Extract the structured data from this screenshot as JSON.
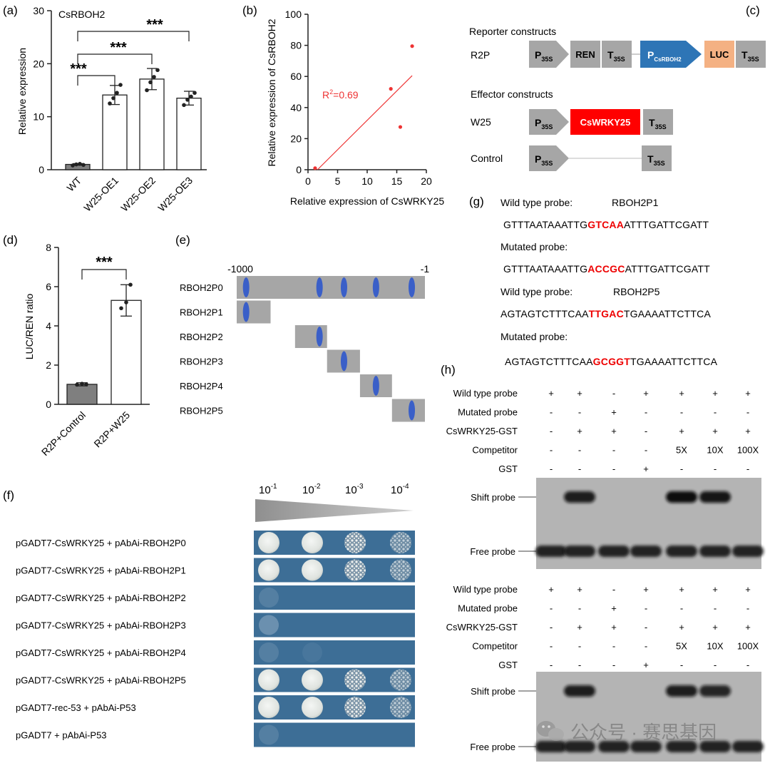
{
  "watermark": "公众号 · 赛思基因",
  "colors": {
    "bar_dark": "#7f7f7f",
    "red": "#ee2222",
    "blue_ellipse": "#3a5fc8",
    "promoter_blue": "#2e75b6",
    "luc_orange": "#f4b183",
    "wrky_red": "#ff0000",
    "gray_box": "#a6a6a6",
    "spot_bg": "#3d6e96"
  },
  "panels": {
    "a": {
      "label": "(a)",
      "chart_data": {
        "type": "bar",
        "title": "CsRBOH2",
        "ylabel": "Relative expression",
        "ylim": [
          0,
          30
        ],
        "yticks": [
          "0",
          "10",
          "20",
          "30"
        ],
        "categories": [
          "WT",
          "W25-OE1",
          "W25-OE2",
          "W25-OE3"
        ],
        "values": [
          1.0,
          14.1,
          17.1,
          13.5
        ],
        "errors": [
          0.15,
          1.8,
          2.0,
          1.3
        ],
        "points": [
          [
            0.8,
            1.0,
            1.1,
            0.9
          ],
          [
            12.5,
            13.5,
            14.5,
            16.0
          ],
          [
            15.0,
            16.5,
            17.5,
            18.8
          ],
          [
            12.2,
            13.2,
            13.8,
            14.5
          ]
        ],
        "significance": [
          "***",
          "***",
          "***"
        ]
      }
    },
    "b": {
      "label": "(b)",
      "chart_data": {
        "type": "scatter",
        "xlabel": "Relative expression of CsWRKY25",
        "ylabel": "Relative expression of CsRBOH2",
        "xlim": [
          0,
          20
        ],
        "ylim": [
          0,
          100
        ],
        "xticks": [
          "0",
          "5",
          "10",
          "15",
          "20"
        ],
        "yticks": [
          "0",
          "20",
          "40",
          "60",
          "80",
          "100"
        ],
        "points": [
          [
            1.2,
            1.0
          ],
          [
            14.0,
            52.0
          ],
          [
            15.6,
            27.5
          ],
          [
            17.6,
            79.5
          ]
        ],
        "fit_line": [
          [
            1.6,
            0
          ],
          [
            17.6,
            60.5
          ]
        ],
        "annotation_base": "R",
        "annotation_sup": "2",
        "annotation_val": "=0.69"
      }
    },
    "c": {
      "label": "(c)",
      "reporter_title": "Reporter constructs",
      "effector_title": "Effector constructs",
      "r2p": "R2P",
      "w25": "W25",
      "control": "Control",
      "p35s_main": "P",
      "p35s_sub": "35S",
      "ren": "REN",
      "t35s_main": "T",
      "t35s_sub": "35S",
      "prom_main": "P",
      "prom_sub": "CsRBOH2",
      "luc": "LUC",
      "wrky": "CsWRKY25"
    },
    "d": {
      "label": "(d)",
      "chart_data": {
        "type": "bar",
        "ylabel": "LUC/REN ratio",
        "ylim": [
          0,
          8
        ],
        "yticks": [
          "0",
          "2",
          "4",
          "6",
          "8"
        ],
        "categories": [
          "R2P+Control",
          "R2P+W25"
        ],
        "values": [
          1.02,
          5.3
        ],
        "errors": [
          0.08,
          0.8
        ],
        "points": [
          [
            1.0,
            1.05,
            1.02
          ],
          [
            4.9,
            5.2,
            6.1
          ]
        ],
        "significance": [
          "***"
        ]
      }
    },
    "e": {
      "label": "(e)",
      "left_tick": "-1000",
      "right_tick": "-1",
      "rows": [
        {
          "name": "RBOH2P0",
          "start": 0,
          "end": 1,
          "sites": [
            0.05,
            0.44,
            0.57,
            0.74,
            0.93
          ]
        },
        {
          "name": "RBOH2P1",
          "start": 0,
          "end": 0.18,
          "sites": [
            0.05
          ]
        },
        {
          "name": "RBOH2P2",
          "start": 0.31,
          "end": 0.48,
          "sites": [
            0.44
          ]
        },
        {
          "name": "RBOH2P3",
          "start": 0.48,
          "end": 0.655,
          "sites": [
            0.57
          ]
        },
        {
          "name": "RBOH2P4",
          "start": 0.655,
          "end": 0.825,
          "sites": [
            0.74
          ]
        },
        {
          "name": "RBOH2P5",
          "start": 0.825,
          "end": 1,
          "sites": [
            0.93
          ]
        }
      ]
    },
    "f": {
      "label": "(f)",
      "dilution_base": "10",
      "dilution_exps": [
        "-1",
        "-2",
        "-3",
        "-4"
      ],
      "rows": [
        {
          "name": "pGADT7-CsWRKY25 + pAbAi-RBOH2P0",
          "growth": [
            1,
            1,
            0.8,
            0.45
          ]
        },
        {
          "name": "pGADT7-CsWRKY25 + pAbAi-RBOH2P1",
          "growth": [
            1,
            1,
            0.8,
            0.45
          ]
        },
        {
          "name": "pGADT7-CsWRKY25 + pAbAi-RBOH2P2",
          "growth": [
            0.1,
            0,
            0,
            0
          ]
        },
        {
          "name": "pGADT7-CsWRKY25 + pAbAi-RBOH2P3",
          "growth": [
            0.2,
            0,
            0,
            0
          ]
        },
        {
          "name": "pGADT7-CsWRKY25 + pAbAi-RBOH2P4",
          "growth": [
            0.1,
            0.05,
            0,
            0
          ]
        },
        {
          "name": "pGADT7-CsWRKY25 + pAbAi-RBOH2P5",
          "growth": [
            1,
            1,
            0.8,
            0.45
          ]
        },
        {
          "name": "pGADT7-rec-53 + pAbAi-P53",
          "growth": [
            1,
            0.95,
            0.8,
            0.45
          ]
        },
        {
          "name": "pGADT7 + pAbAi-P53",
          "growth": [
            0.1,
            0,
            0,
            0
          ]
        }
      ]
    },
    "g": {
      "label": "(g)",
      "wt1_title": "Wild type probe:",
      "wt1_name": "RBOH2P1",
      "wt1_pre": "GTTTAATAAATTG",
      "wt1_core": "GTCAA",
      "wt1_post": "ATTTGATTCGATT",
      "mut1_title": "Mutated probe:",
      "mut1_pre": "GTTTAATAAATTG",
      "mut1_core": "ACCGC",
      "mut1_post": "ATTTGATTCGATT",
      "wt5_title": "Wild type probe:",
      "wt5_name": "RBOH2P5",
      "wt5_pre": "AGTAGTCTTTCAA",
      "wt5_core": "TTGAC",
      "wt5_post": "TGAAAATTCTTCA",
      "mut5_title": "Mutated probe:",
      "mut5_pre": "AGTAGTCTTTCAA",
      "mut5_core": "GCGGT",
      "mut5_post": "TGAAAATTCTTCA"
    },
    "h": {
      "label": "(h)",
      "blots": [
        {
          "rows": [
            {
              "name": "Wild type probe",
              "cells": [
                "+",
                "+",
                "-",
                "+",
                "+",
                "+",
                "+"
              ]
            },
            {
              "name": "Mutated probe",
              "cells": [
                "-",
                "-",
                "+",
                "-",
                "-",
                "-",
                "-"
              ]
            },
            {
              "name": "CsWRKY25-GST",
              "cells": [
                "-",
                "+",
                "+",
                "-",
                "+",
                "+",
                "+"
              ]
            },
            {
              "name": "Competitor",
              "cells": [
                "-",
                "-",
                "-",
                "-",
                "5X",
                "10X",
                "100X"
              ]
            },
            {
              "name": "GST",
              "cells": [
                "-",
                "-",
                "-",
                "+",
                "-",
                "-",
                "-"
              ]
            }
          ],
          "shift_label": "Shift probe",
          "free_label": "Free probe",
          "shift_intensity": [
            0,
            0.9,
            0,
            0,
            1,
            0.95,
            0
          ],
          "free_intensity": [
            1,
            1,
            1,
            1,
            1,
            1,
            1
          ]
        },
        {
          "rows": [
            {
              "name": "Wild type probe",
              "cells": [
                "+",
                "+",
                "-",
                "+",
                "+",
                "+",
                "+"
              ]
            },
            {
              "name": "Mutated probe",
              "cells": [
                "-",
                "-",
                "+",
                "-",
                "-",
                "-",
                "-"
              ]
            },
            {
              "name": "CsWRKY25-GST",
              "cells": [
                "-",
                "+",
                "+",
                "-",
                "+",
                "+",
                "+"
              ]
            },
            {
              "name": "Competitor",
              "cells": [
                "-",
                "-",
                "-",
                "-",
                "5X",
                "10X",
                "100X"
              ]
            },
            {
              "name": "GST",
              "cells": [
                "-",
                "-",
                "-",
                "+",
                "-",
                "-",
                "-"
              ]
            }
          ],
          "shift_label": "Shift probe",
          "free_label": "Free probe",
          "shift_intensity": [
            0,
            0.9,
            0,
            0,
            0.9,
            0.85,
            0
          ],
          "free_intensity": [
            1,
            1,
            1,
            1,
            1,
            1,
            1
          ]
        }
      ]
    }
  }
}
